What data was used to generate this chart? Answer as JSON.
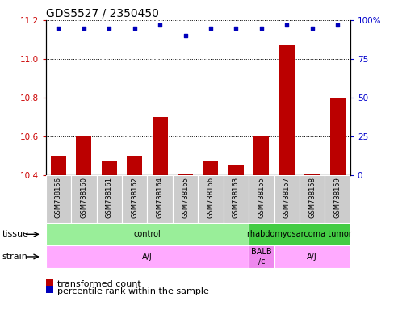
{
  "title": "GDS5527 / 2350450",
  "samples": [
    "GSM738156",
    "GSM738160",
    "GSM738161",
    "GSM738162",
    "GSM738164",
    "GSM738165",
    "GSM738166",
    "GSM738163",
    "GSM738155",
    "GSM738157",
    "GSM738158",
    "GSM738159"
  ],
  "bar_values": [
    10.5,
    10.6,
    10.47,
    10.5,
    10.7,
    10.41,
    10.47,
    10.45,
    10.6,
    11.07,
    10.41,
    10.8
  ],
  "scatter_percentiles": [
    95,
    95,
    95,
    95,
    97,
    90,
    95,
    95,
    95,
    97,
    95,
    97
  ],
  "ylim_left": [
    10.4,
    11.2
  ],
  "ylim_right": [
    0,
    100
  ],
  "yticks_left": [
    10.4,
    10.6,
    10.8,
    11.0,
    11.2
  ],
  "yticks_right": [
    0,
    25,
    50,
    75,
    100
  ],
  "bar_color": "#bb0000",
  "scatter_color": "#0000bb",
  "bar_bottom": 10.4,
  "tissue_groups": [
    {
      "label": "control",
      "start": 0,
      "end": 8,
      "color": "#99ee99"
    },
    {
      "label": "rhabdomyosarcoma tumor",
      "start": 8,
      "end": 12,
      "color": "#44cc44"
    }
  ],
  "strain_groups": [
    {
      "label": "A/J",
      "start": 0,
      "end": 8,
      "color": "#ffaaff"
    },
    {
      "label": "BALB\n/c",
      "start": 8,
      "end": 9,
      "color": "#ee88ee"
    },
    {
      "label": "A/J",
      "start": 9,
      "end": 12,
      "color": "#ffaaff"
    }
  ],
  "legend_items": [
    {
      "label": "transformed count",
      "color": "#bb0000"
    },
    {
      "label": "percentile rank within the sample",
      "color": "#0000bb"
    }
  ],
  "left_tick_color": "#cc0000",
  "right_tick_color": "#0000cc",
  "title_fontsize": 10,
  "tick_fontsize": 7.5,
  "sample_fontsize": 6,
  "label_fontsize": 8,
  "row_label_fontsize": 8,
  "legend_fontsize": 8
}
